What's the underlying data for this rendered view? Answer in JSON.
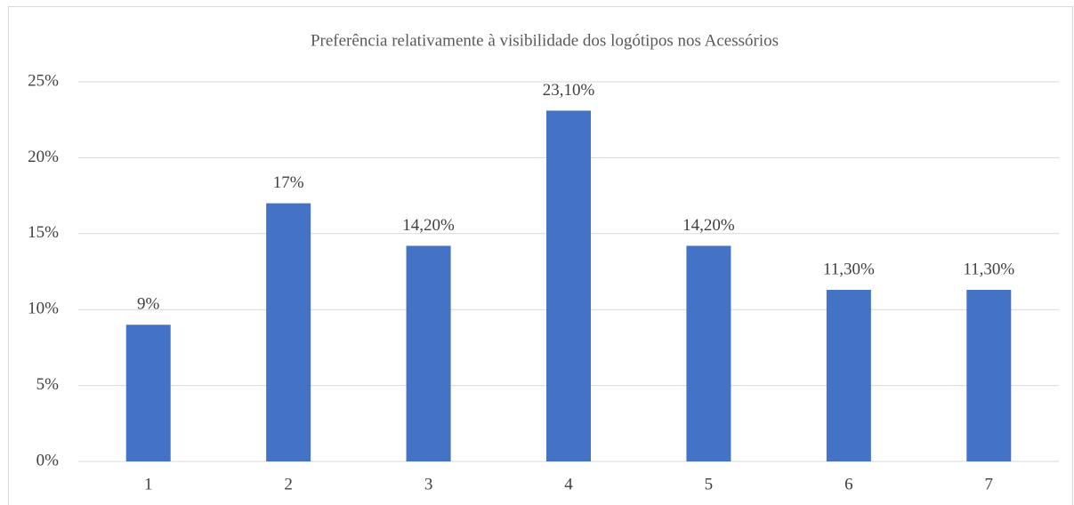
{
  "chart_data": {
    "type": "bar",
    "title": "Preferência relativamente à visibilidade dos logótipos nos Acessórios",
    "categories": [
      "1",
      "2",
      "3",
      "4",
      "5",
      "6",
      "7"
    ],
    "values": [
      9,
      17,
      14.2,
      23.1,
      14.2,
      11.3,
      11.3
    ],
    "value_labels": [
      "9%",
      "17%",
      "14,20%",
      "23,10%",
      "14,20%",
      "11,30%",
      "11,30%"
    ],
    "color": "#4472c4",
    "ylim": [
      0,
      25
    ],
    "yticks": [
      {
        "value": 0,
        "label": "0%"
      },
      {
        "value": 5,
        "label": "5%"
      },
      {
        "value": 10,
        "label": "10%"
      },
      {
        "value": 15,
        "label": "15%"
      },
      {
        "value": 20,
        "label": "20%"
      },
      {
        "value": 25,
        "label": "25%"
      }
    ],
    "grid": true
  }
}
